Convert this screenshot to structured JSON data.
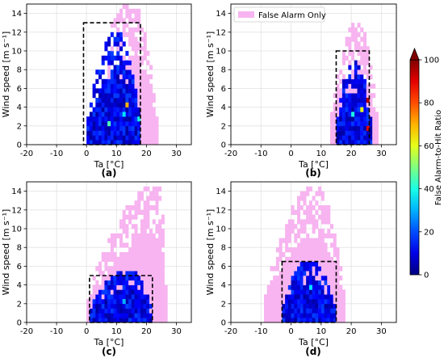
{
  "chart_data": {
    "type": "heatmap",
    "colorbar": {
      "label": "False Alarm-to-Hit Ratio",
      "min": 0,
      "max": 100,
      "ticks": [
        "0",
        "20",
        "40",
        "60",
        "80",
        "100"
      ],
      "extend": "max",
      "colormap": "jet"
    },
    "false_alarm_only_color": "#f7b4f0",
    "legend": {
      "label": "False Alarm Only",
      "panel": "b",
      "placement": "top-left"
    },
    "panels": [
      {
        "id": "a",
        "caption": "(a)",
        "xlabel": "Ta [°C]",
        "ylabel": "Wind speed [m s⁻¹]",
        "xlim": [
          -20,
          35
        ],
        "ylim": [
          0,
          15
        ],
        "xticks": [
          "-20",
          "-10",
          "0",
          "10",
          "20",
          "30"
        ],
        "yticks": [
          "0",
          "2",
          "4",
          "6",
          "8",
          "10",
          "12",
          "14"
        ],
        "dashed_box": {
          "x": [
            -1,
            18
          ],
          "y": [
            0,
            13
          ]
        },
        "pink_extent": {
          "x": [
            0,
            24
          ],
          "y": [
            0,
            15
          ],
          "peak_x": 15
        },
        "blue_extent": {
          "x": [
            0,
            18
          ],
          "y": [
            0,
            12
          ],
          "peak_x": 10
        },
        "hotspots": [
          {
            "x": 13,
            "y": 4.3,
            "ratio": 70
          },
          {
            "x": 7,
            "y": 2.2,
            "ratio": 45
          },
          {
            "x": 17,
            "y": 2.5,
            "ratio": 40
          },
          {
            "x": 12,
            "y": 3.2,
            "ratio": 35
          }
        ]
      },
      {
        "id": "b",
        "caption": "(b)",
        "xlabel": "Ta [°C]",
        "ylabel": "Wind speed [m s⁻¹]",
        "xlim": [
          -20,
          35
        ],
        "ylim": [
          0,
          15
        ],
        "xticks": [
          "-20",
          "-10",
          "0",
          "10",
          "20",
          "30"
        ],
        "yticks": [
          "0",
          "2",
          "4",
          "6",
          "8",
          "10",
          "12",
          "14"
        ],
        "dashed_box": {
          "x": [
            15,
            26
          ],
          "y": [
            0,
            10
          ]
        },
        "pink_extent": {
          "x": [
            13,
            29
          ],
          "y": [
            0,
            13
          ],
          "peak_x": 22
        },
        "blue_extent": {
          "x": [
            15,
            27
          ],
          "y": [
            0,
            9
          ],
          "peak_x": 21
        },
        "hotspots": [
          {
            "x": 25,
            "y": 4.5,
            "ratio": 95
          },
          {
            "x": 25.5,
            "y": 1.5,
            "ratio": 90
          },
          {
            "x": 23,
            "y": 3.5,
            "ratio": 60
          },
          {
            "x": 20,
            "y": 3,
            "ratio": 40
          }
        ]
      },
      {
        "id": "c",
        "caption": "(c)",
        "xlabel": "Ta [°C]",
        "ylabel": "Wind speed [m s⁻¹]",
        "xlim": [
          -20,
          35
        ],
        "ylim": [
          0,
          15
        ],
        "xticks": [
          "-20",
          "-10",
          "0",
          "10",
          "20",
          "30"
        ],
        "yticks": [
          "0",
          "2",
          "4",
          "6",
          "8",
          "10",
          "12",
          "14"
        ],
        "dashed_box": {
          "x": [
            1,
            22
          ],
          "y": [
            0,
            5
          ]
        },
        "pink_extent": {
          "x": [
            0,
            27
          ],
          "y": [
            0,
            14.5
          ],
          "peak_x": 24
        },
        "blue_extent": {
          "x": [
            1,
            22
          ],
          "y": [
            0,
            5.5
          ],
          "peak_x": 14
        },
        "hotspots": [
          {
            "x": 12,
            "y": 2.2,
            "ratio": 30
          }
        ]
      },
      {
        "id": "d",
        "caption": "(d)",
        "xlabel": "Ta [°C]",
        "ylabel": "Wind speed [m s⁻¹]",
        "xlim": [
          -20,
          35
        ],
        "ylim": [
          0,
          15
        ],
        "xticks": [
          "-20",
          "-10",
          "0",
          "10",
          "20",
          "30"
        ],
        "yticks": [
          "0",
          "2",
          "4",
          "6",
          "8",
          "10",
          "12",
          "14"
        ],
        "dashed_box": {
          "x": [
            -3,
            15
          ],
          "y": [
            0,
            6.5
          ]
        },
        "pink_extent": {
          "x": [
            -9,
            18
          ],
          "y": [
            0,
            14.5
          ],
          "peak_x": 8
        },
        "blue_extent": {
          "x": [
            -3,
            15
          ],
          "y": [
            0,
            6.5
          ],
          "peak_x": 6
        },
        "hotspots": [
          {
            "x": 6,
            "y": 3.8,
            "ratio": 35
          }
        ]
      }
    ]
  }
}
